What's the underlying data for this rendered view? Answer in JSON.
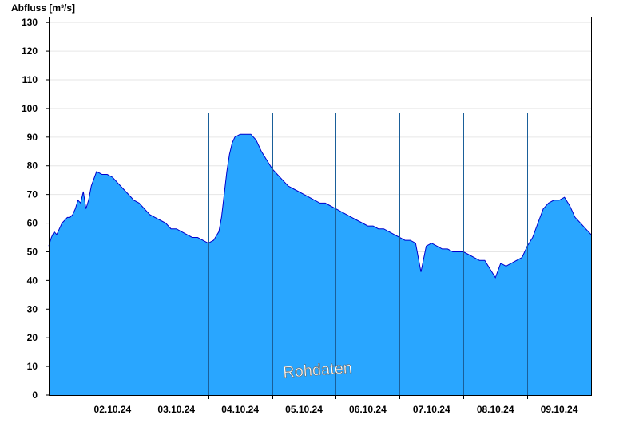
{
  "chart_data": {
    "type": "area",
    "ylabel": "Abfluss [m³/s]",
    "watermark": "Rohdaten",
    "ylim": [
      0,
      132
    ],
    "yticks": [
      0,
      10,
      20,
      30,
      40,
      50,
      60,
      70,
      80,
      90,
      100,
      110,
      120,
      130
    ],
    "xlim": [
      "01.10.24 12:00",
      "09.10.24 24:00"
    ],
    "xtick_labels": [
      "02.10.24",
      "03.10.24",
      "04.10.24",
      "05.10.24",
      "06.10.24",
      "07.10.24",
      "08.10.24",
      "09.10.24"
    ],
    "xtick_label_times": [
      "02.10.24 12:00",
      "03.10.24 12:00",
      "04.10.24 12:00",
      "05.10.24 12:00",
      "06.10.24 12:00",
      "07.10.24 12:00",
      "08.10.24 12:00",
      "09.10.24 12:00"
    ],
    "day_boundaries": [
      "03.10.24 00:00",
      "04.10.24 00:00",
      "05.10.24 00:00",
      "06.10.24 00:00",
      "07.10.24 00:00",
      "08.10.24 00:00",
      "09.10.24 00:00"
    ],
    "grid": true,
    "colors": {
      "fill": "#29a6ff",
      "line": "#0000cc",
      "grid": "#e6e6e6",
      "axis": "#000000"
    },
    "series": [
      {
        "x": [
          "01.10.24 12:00",
          "01.10.24 13:00",
          "01.10.24 14:00",
          "01.10.24 15:00",
          "01.10.24 16:00",
          "01.10.24 17:00",
          "01.10.24 18:00",
          "01.10.24 19:00",
          "01.10.24 20:00",
          "01.10.24 21:00",
          "01.10.24 22:00",
          "01.10.24 23:00",
          "02.10.24 00:00",
          "02.10.24 01:00",
          "02.10.24 02:00",
          "02.10.24 03:00",
          "02.10.24 04:00",
          "02.10.24 06:00",
          "02.10.24 08:00",
          "02.10.24 10:00",
          "02.10.24 12:00",
          "02.10.24 14:00",
          "02.10.24 16:00",
          "02.10.24 18:00",
          "02.10.24 20:00",
          "02.10.24 22:00",
          "03.10.24 00:00",
          "03.10.24 02:00",
          "03.10.24 04:00",
          "03.10.24 06:00",
          "03.10.24 08:00",
          "03.10.24 10:00",
          "03.10.24 12:00",
          "03.10.24 14:00",
          "03.10.24 16:00",
          "03.10.24 18:00",
          "03.10.24 20:00",
          "03.10.24 22:00",
          "04.10.24 00:00",
          "04.10.24 02:00",
          "04.10.24 04:00",
          "04.10.24 05:00",
          "04.10.24 06:00",
          "04.10.24 07:00",
          "04.10.24 08:00",
          "04.10.24 09:00",
          "04.10.24 10:00",
          "04.10.24 12:00",
          "04.10.24 14:00",
          "04.10.24 16:00",
          "04.10.24 18:00",
          "04.10.24 20:00",
          "04.10.24 22:00",
          "05.10.24 00:00",
          "05.10.24 02:00",
          "05.10.24 04:00",
          "05.10.24 06:00",
          "05.10.24 08:00",
          "05.10.24 10:00",
          "05.10.24 12:00",
          "05.10.24 14:00",
          "05.10.24 16:00",
          "05.10.24 18:00",
          "05.10.24 20:00",
          "05.10.24 22:00",
          "06.10.24 00:00",
          "06.10.24 02:00",
          "06.10.24 04:00",
          "06.10.24 06:00",
          "06.10.24 08:00",
          "06.10.24 10:00",
          "06.10.24 12:00",
          "06.10.24 14:00",
          "06.10.24 16:00",
          "06.10.24 18:00",
          "06.10.24 20:00",
          "06.10.24 22:00",
          "07.10.24 00:00",
          "07.10.24 02:00",
          "07.10.24 04:00",
          "07.10.24 06:00",
          "07.10.24 08:00",
          "07.10.24 10:00",
          "07.10.24 12:00",
          "07.10.24 14:00",
          "07.10.24 16:00",
          "07.10.24 18:00",
          "07.10.24 20:00",
          "07.10.24 22:00",
          "08.10.24 00:00",
          "08.10.24 02:00",
          "08.10.24 04:00",
          "08.10.24 06:00",
          "08.10.24 08:00",
          "08.10.24 10:00",
          "08.10.24 12:00",
          "08.10.24 14:00",
          "08.10.24 16:00",
          "08.10.24 18:00",
          "08.10.24 20:00",
          "08.10.24 22:00",
          "09.10.24 00:00",
          "09.10.24 02:00",
          "09.10.24 04:00",
          "09.10.24 06:00",
          "09.10.24 08:00",
          "09.10.24 10:00",
          "09.10.24 12:00",
          "09.10.24 14:00",
          "09.10.24 16:00",
          "09.10.24 18:00",
          "09.10.24 20:00",
          "09.10.24 22:00",
          "09.10.24 24:00"
        ],
        "y": [
          52,
          55,
          57,
          56,
          58,
          60,
          61,
          62,
          62,
          63,
          65,
          68,
          67,
          71,
          65,
          68,
          73,
          78,
          77,
          77,
          76,
          74,
          72,
          70,
          68,
          67,
          65,
          63,
          62,
          61,
          60,
          58,
          58,
          57,
          56,
          55,
          55,
          54,
          53,
          54,
          57,
          62,
          70,
          78,
          84,
          88,
          90,
          91,
          91,
          91,
          89,
          85,
          82,
          79,
          77,
          75,
          73,
          72,
          71,
          70,
          69,
          68,
          67,
          67,
          66,
          65,
          64,
          63,
          62,
          61,
          60,
          59,
          59,
          58,
          58,
          57,
          56,
          55,
          54,
          54,
          53,
          43,
          52,
          53,
          52,
          51,
          51,
          50,
          50,
          50,
          49,
          48,
          47,
          47,
          44,
          41,
          46,
          45,
          46,
          47,
          48,
          52,
          55,
          60,
          65,
          67,
          68,
          68,
          69,
          66,
          62,
          60,
          58,
          56
        ]
      }
    ]
  }
}
